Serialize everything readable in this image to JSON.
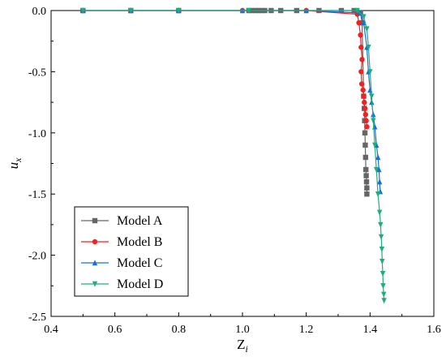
{
  "chart_data": {
    "type": "line",
    "xlabel": {
      "main": "Z",
      "sub": "i"
    },
    "ylabel": {
      "main": "u",
      "sub": "x"
    },
    "xlim": [
      0.4,
      1.6
    ],
    "ylim": [
      -2.5,
      0.0
    ],
    "xticks": [
      0.4,
      0.6,
      0.8,
      1.0,
      1.2,
      1.4,
      1.6
    ],
    "yticks": [
      0.0,
      -0.5,
      -1.0,
      -1.5,
      -2.0,
      -2.5
    ],
    "xtick_labels": [
      "0.4",
      "0.6",
      "0.8",
      "1.0",
      "1.2",
      "1.4",
      "1.6"
    ],
    "ytick_labels": [
      "0.0",
      "-0.5",
      "-1.0",
      "-1.5",
      "-2.0",
      "-2.5"
    ],
    "grid": false,
    "legend_position": "bottom-left",
    "series": [
      {
        "name": "Model A",
        "color": "#666666",
        "marker": "square",
        "x": [
          0.5,
          0.65,
          0.8,
          1.02,
          1.03,
          1.04,
          1.05,
          1.06,
          1.07,
          1.09,
          1.12,
          1.17,
          1.24,
          1.31,
          1.35,
          1.37,
          1.375,
          1.38,
          1.382,
          1.383,
          1.384,
          1.385,
          1.386,
          1.387,
          1.388,
          1.389,
          1.39,
          1.39
        ],
        "y": [
          0.0,
          0.0,
          0.0,
          0.0,
          0.0,
          0.0,
          0.0,
          0.0,
          0.0,
          0.0,
          0.0,
          0.0,
          0.0,
          0.0,
          0.0,
          -0.02,
          -0.1,
          -0.7,
          -0.8,
          -0.9,
          -1.0,
          -1.1,
          -1.2,
          -1.3,
          -1.35,
          -1.4,
          -1.45,
          -1.5
        ]
      },
      {
        "name": "Model B",
        "color": "#ee2222",
        "marker": "circle",
        "x": [
          0.5,
          0.65,
          0.8,
          1.0,
          1.2,
          1.36,
          1.365,
          1.37,
          1.372,
          1.375,
          1.372,
          1.374,
          1.378,
          1.38,
          1.382,
          1.384,
          1.386,
          1.388,
          1.39
        ],
        "y": [
          0.0,
          0.0,
          0.0,
          0.0,
          0.0,
          -0.03,
          -0.1,
          -0.2,
          -0.3,
          -0.4,
          -0.5,
          -0.6,
          -0.65,
          -0.7,
          -0.75,
          -0.8,
          -0.85,
          -0.9,
          -0.95
        ]
      },
      {
        "name": "Model C",
        "color": "#1a6fd6",
        "marker": "triangle-up",
        "x": [
          0.5,
          0.65,
          0.8,
          1.0,
          1.2,
          1.37,
          1.38,
          1.39,
          1.395,
          1.4,
          1.405,
          1.41,
          1.415,
          1.42,
          1.425,
          1.428,
          1.43,
          1.432
        ],
        "y": [
          0.0,
          0.0,
          0.0,
          0.0,
          0.0,
          -0.02,
          -0.1,
          -0.3,
          -0.5,
          -0.65,
          -0.75,
          -0.85,
          -0.95,
          -1.1,
          -1.2,
          -1.3,
          -1.4,
          -1.48
        ]
      },
      {
        "name": "Model D",
        "color": "#1fad7e",
        "marker": "triangle-down",
        "x": [
          0.5,
          0.65,
          0.8,
          1.02,
          1.36,
          1.38,
          1.39,
          1.395,
          1.4,
          1.405,
          1.41,
          1.415,
          1.42,
          1.425,
          1.43,
          1.433,
          1.435,
          1.437,
          1.438,
          1.44,
          1.441,
          1.443,
          1.444
        ],
        "y": [
          0.0,
          0.0,
          0.0,
          0.0,
          0.0,
          -0.05,
          -0.15,
          -0.3,
          -0.5,
          -0.7,
          -0.9,
          -1.1,
          -1.3,
          -1.5,
          -1.65,
          -1.75,
          -1.85,
          -1.95,
          -2.05,
          -2.15,
          -2.25,
          -2.32,
          -2.37
        ]
      }
    ]
  }
}
